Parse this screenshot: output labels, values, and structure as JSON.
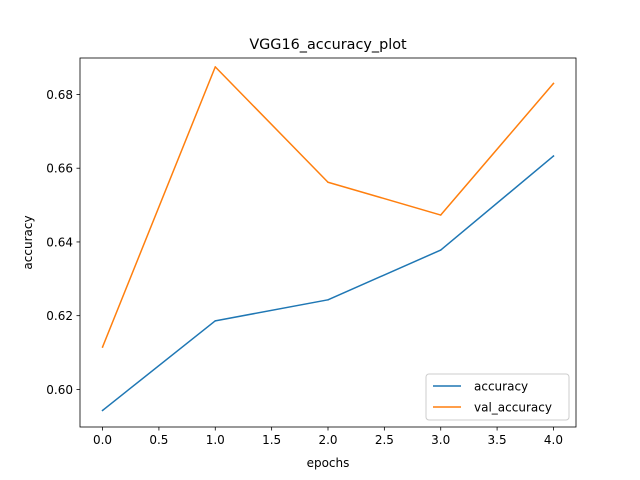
{
  "chart_data": {
    "type": "line",
    "title": "VGG16_accuracy_plot",
    "xlabel": "epochs",
    "ylabel": "accuracy",
    "xlim": [
      -0.2,
      4.2
    ],
    "ylim": [
      0.5898,
      0.6899
    ],
    "x_ticks": [
      0.0,
      0.5,
      1.0,
      1.5,
      2.0,
      2.5,
      3.0,
      3.5,
      4.0
    ],
    "x_tick_labels": [
      "0.0",
      "0.5",
      "1.0",
      "1.5",
      "2.0",
      "2.5",
      "3.0",
      "3.5",
      "4.0"
    ],
    "y_ticks": [
      0.6,
      0.62,
      0.64,
      0.66,
      0.68
    ],
    "y_tick_labels": [
      "0.60",
      "0.62",
      "0.64",
      "0.66",
      "0.68"
    ],
    "x": [
      0,
      1,
      2,
      3,
      4
    ],
    "series": [
      {
        "name": "accuracy",
        "color": "#1f77b4",
        "values": [
          0.5943,
          0.6186,
          0.6243,
          0.6378,
          0.6633
        ]
      },
      {
        "name": "val_accuracy",
        "color": "#ff7f0e",
        "values": [
          0.6115,
          0.6875,
          0.6562,
          0.6473,
          0.683
        ]
      }
    ],
    "grid": false,
    "legend_position": "lower right"
  }
}
